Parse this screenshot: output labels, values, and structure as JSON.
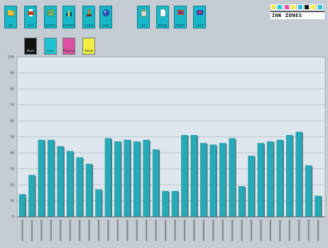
{
  "toolbar": {
    "buttons": [
      {
        "label": "Qty",
        "icon": "folder-open-icon"
      },
      {
        "label": "Send",
        "icon": "printer-icon"
      },
      {
        "label": "Locate Data",
        "icon": "map-icon"
      },
      {
        "label": "Inventory",
        "icon": "bar-chart-icon"
      },
      {
        "label": "Create",
        "icon": "tools-icon"
      },
      {
        "label": "Help",
        "icon": "help-globe-icon"
      },
      {
        "label": "Calc",
        "icon": "calculator-icon"
      },
      {
        "label": "Ready",
        "icon": "document-icon"
      },
      {
        "label": "Import",
        "icon": "import-icon"
      },
      {
        "label": "Send",
        "icon": "send-icon"
      }
    ]
  },
  "swatches": [
    {
      "label": "Black",
      "color": "#111111"
    },
    {
      "label": "Cyan",
      "color": "#1cc4d4"
    },
    {
      "label": "Magenta",
      "color": "#e050a0"
    },
    {
      "label": "Yellow",
      "color": "#f0ec40"
    }
  ],
  "logo": {
    "text": "INK ZONES",
    "colors": [
      "#f0ec40",
      "#1cc4d4",
      "#e050a0",
      "#f0ec40",
      "#1cc4d4",
      "#111111",
      "#f0ec40",
      "#1cc4d4"
    ]
  },
  "chart_data": {
    "type": "bar",
    "ylim": [
      0,
      100
    ],
    "yticks": [
      "0",
      "10",
      "20",
      "30",
      "40",
      "50",
      "60",
      "70",
      "80",
      "90",
      "100"
    ],
    "grid": true,
    "bar_color": "#27aab8",
    "values": [
      14,
      26,
      48,
      48,
      44,
      41,
      37,
      33,
      17,
      49,
      47,
      48,
      47,
      48,
      42,
      16,
      16,
      51,
      51,
      46,
      45,
      46,
      49,
      19,
      38,
      46,
      47,
      48,
      51,
      53,
      32,
      13
    ]
  }
}
